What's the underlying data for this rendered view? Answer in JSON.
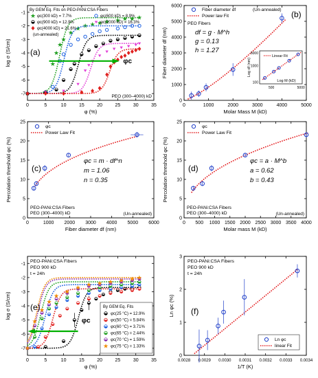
{
  "colors": {
    "axis": "#000000",
    "fit_red": "#e31a1c",
    "marker_blue": "#1f3ec9",
    "arrow_green": "#00b000",
    "green": "#1f9e1f",
    "black": "#000000",
    "red": "#e0201e",
    "blue": "#1b5fe0",
    "magenta": "#e23cd6",
    "orange": "#f08a00",
    "violet": "#8b2fb0"
  },
  "chart_data": [
    {
      "id": "a",
      "panel_label": "(a)",
      "type": "scatter",
      "xlabel": "φ (%)",
      "ylabel": "log σ (S/cm)",
      "xlim": [
        0,
        35
      ],
      "ylim": [
        -7.5,
        -0.5
      ],
      "xticks": [
        0,
        5,
        10,
        15,
        20,
        25,
        30,
        35
      ],
      "yticks": [
        -7,
        -6,
        -5,
        -4,
        -3,
        -2,
        -1
      ],
      "legend_title": "By GEM Eq. Fits on PEO-PANi:CSA Fibers",
      "legend_note": "(un-annealed)",
      "annotation": "PEO (300–4000) kD",
      "arrow_label": "φc",
      "legend": [
        {
          "label": "φc(300 kD) = 7.7%",
          "color": "#1f9e1f",
          "marker": "star"
        },
        {
          "label": "φc(600 kD) = 8.9%",
          "color": "#1b5fe0",
          "marker": "circle"
        },
        {
          "label": "φc(900 kD) = 12.9%",
          "color": "#000000",
          "marker": "half-circle"
        },
        {
          "label": "φc(2000 kD) = 16.3%",
          "color": "#e23cd6",
          "marker": "triangle-down"
        },
        {
          "label": "φc(4000 kD) = 21.6%",
          "color": "#e0201e",
          "marker": "diamond"
        }
      ],
      "series": [
        {
          "name": "φc(300 kD) = 7.7%",
          "color": "#1f9e1f",
          "marker": "star",
          "phic": 7.7,
          "low": -7.0,
          "high": -1.4,
          "x": [
            0,
            5,
            7,
            8,
            9,
            10,
            12,
            14,
            16,
            18,
            20,
            22,
            25,
            27,
            29,
            31
          ],
          "y": [
            -7.0,
            -6.9,
            -4.8,
            -4.0,
            -3.4,
            -3.0,
            -2.5,
            -2.2,
            -2.0,
            -1.9,
            -1.8,
            -1.7,
            -1.6,
            -1.5,
            -1.5,
            -1.4
          ]
        },
        {
          "name": "φc(600 kD) = 8.9%",
          "color": "#1b5fe0",
          "marker": "circle",
          "phic": 8.9,
          "low": -7.0,
          "high": -2.0,
          "x": [
            0,
            5,
            7,
            9,
            10,
            12,
            14,
            16,
            18,
            20,
            22,
            25,
            27,
            29,
            31
          ],
          "y": [
            -7.0,
            -6.9,
            -6.5,
            -4.6,
            -4.1,
            -3.4,
            -3.0,
            -2.8,
            -2.6,
            -2.4,
            -2.3,
            -2.2,
            -2.1,
            -2.0,
            -2.0
          ]
        },
        {
          "name": "φc(900 kD) = 12.9%",
          "color": "#000000",
          "marker": "half-circle",
          "phic": 12.9,
          "low": -7.0,
          "high": -2.7,
          "x": [
            0,
            5,
            8,
            10,
            12,
            13,
            15,
            17,
            19,
            21,
            23,
            25,
            27,
            29,
            31
          ],
          "y": [
            -7.0,
            -6.9,
            -6.7,
            -6.0,
            -5.2,
            -4.8,
            -4.1,
            -3.8,
            -3.5,
            -3.3,
            -3.1,
            -3.0,
            -2.9,
            -2.8,
            -2.7
          ]
        },
        {
          "name": "φc(2000 kD) = 16.3%",
          "color": "#e23cd6",
          "marker": "triangle-down",
          "phic": 16.3,
          "low": -7.0,
          "high": -3.3,
          "x": [
            0,
            5,
            10,
            14,
            16,
            17,
            18,
            20,
            22,
            24,
            26,
            28,
            30,
            31
          ],
          "y": [
            -7.0,
            -6.9,
            -6.8,
            -6.3,
            -5.3,
            -4.9,
            -4.6,
            -4.2,
            -3.9,
            -3.7,
            -3.6,
            -3.5,
            -3.4,
            -3.3
          ]
        },
        {
          "name": "φc(4000 kD) = 21.6%",
          "color": "#e0201e",
          "marker": "diamond",
          "phic": 21.6,
          "low": -7.0,
          "high": -3.7,
          "x": [
            0,
            5,
            10,
            15,
            18,
            20,
            22,
            23,
            24,
            25,
            26,
            27,
            28,
            29,
            30,
            31
          ],
          "y": [
            -7.0,
            -7.0,
            -7.0,
            -6.9,
            -6.8,
            -6.6,
            -5.6,
            -5.0,
            -4.7,
            -4.5,
            -4.3,
            -4.2,
            -4.0,
            -3.9,
            -3.8,
            -3.7
          ]
        }
      ]
    },
    {
      "id": "b",
      "panel_label": "(b)",
      "type": "scatter",
      "xlabel": "Molar Mass M (kD)",
      "ylabel": "Fiber diameter df (nm)",
      "xlim": [
        0,
        5000
      ],
      "ylim": [
        0,
        6000
      ],
      "xticks": [
        0,
        1000,
        2000,
        3000,
        4000,
        5000
      ],
      "yticks": [
        0,
        1000,
        2000,
        3000,
        4000,
        5000,
        6000
      ],
      "legend": [
        {
          "label": "Fiber diameter df",
          "color": "#1f3ec9",
          "marker": "circle"
        },
        {
          "label": "Power law Fit",
          "color": "#e31a1c",
          "marker": "dotted-line"
        }
      ],
      "note": "(Un-annealed)",
      "annotation_title": "PEO Fibers",
      "equation_lines": [
        "df = g · M^h",
        "g = 0.13",
        "h = 1.27"
      ],
      "points": [
        {
          "x": 300,
          "y": 300,
          "err": 250
        },
        {
          "x": 600,
          "y": 420,
          "err": 200
        },
        {
          "x": 900,
          "y": 820,
          "err": 250
        },
        {
          "x": 2000,
          "y": 1950,
          "err": 400
        },
        {
          "x": 4000,
          "y": 5200,
          "err": 300
        }
      ],
      "fit": {
        "a": 0.13,
        "b": 1.27
      },
      "inset": {
        "xlabel": "Log M (kD)",
        "ylabel": "Log df (nm)",
        "legend": "Linear Fit",
        "yticks": [
          100,
          1000,
          6000
        ],
        "xticks": [
          500,
          5000
        ],
        "points_m": [
          300,
          600,
          900,
          2000,
          4000
        ]
      }
    },
    {
      "id": "c",
      "panel_label": "(c)",
      "type": "scatter",
      "xlabel": "Fiber diameter df (nm)",
      "ylabel": "Percolation threshold φc (%)",
      "xlim": [
        0,
        6000
      ],
      "ylim": [
        0,
        25
      ],
      "xticks": [
        0,
        1000,
        2000,
        3000,
        4000,
        5000,
        6000
      ],
      "yticks": [
        0,
        5,
        10,
        15,
        20,
        25
      ],
      "legend": [
        {
          "label": "φc",
          "color": "#1f3ec9",
          "marker": "circle"
        },
        {
          "label": "Power Law Fit",
          "color": "#e31a1c",
          "marker": "dotted-line"
        }
      ],
      "equation_lines": [
        "φc = m · df^n",
        "m = 1.06",
        "n = 0.35"
      ],
      "caption_lines": [
        "PEO-PANi:CSA Fibers",
        "PEO (300–4000) kD"
      ],
      "note": "(Un-annealed)",
      "points": [
        {
          "x": 300,
          "y": 7.7,
          "err": 0.6
        },
        {
          "x": 420,
          "y": 8.9,
          "err": 0.6
        },
        {
          "x": 820,
          "y": 12.9,
          "err": 0.8
        },
        {
          "x": 1950,
          "y": 16.3,
          "err": 0.5
        },
        {
          "x": 5200,
          "y": 21.6,
          "err": 0.7,
          "xerr": 300
        }
      ],
      "fit": {
        "a": 1.06,
        "b": 0.35
      }
    },
    {
      "id": "d",
      "panel_label": "(d)",
      "type": "scatter",
      "xlabel": "Molar mass M (kD)",
      "ylabel": "Percolation threshold φc (%)",
      "xlim": [
        0,
        4000
      ],
      "ylim": [
        0,
        25
      ],
      "xticks": [
        0,
        500,
        1000,
        1500,
        2000,
        2500,
        3000,
        3500,
        4000
      ],
      "yticks": [
        0,
        5,
        10,
        15,
        20,
        25
      ],
      "legend": [
        {
          "label": "φc",
          "color": "#1f3ec9",
          "marker": "circle"
        },
        {
          "label": "Power Law Fit",
          "color": "#e31a1c",
          "marker": "dotted-line"
        }
      ],
      "equation_lines": [
        "φc = a · M^b",
        "a = 0.62",
        "b = 0.43"
      ],
      "caption_lines": [
        "PEO-PANi:CSA Fibers",
        "PEO (300–4000) kD"
      ],
      "note": "(Un-annealed)",
      "points": [
        {
          "x": 300,
          "y": 7.7,
          "err": 0.6
        },
        {
          "x": 600,
          "y": 8.9,
          "err": 0.6
        },
        {
          "x": 900,
          "y": 12.9,
          "err": 0.8
        },
        {
          "x": 2000,
          "y": 16.3,
          "err": 0.5
        },
        {
          "x": 4000,
          "y": 21.6,
          "err": 0.7
        }
      ],
      "fit": {
        "a": 0.62,
        "b": 0.43
      }
    },
    {
      "id": "e",
      "panel_label": "(e)",
      "type": "scatter",
      "xlabel": "φ (%)",
      "ylabel": "log σ (S/cm)",
      "xlim": [
        0,
        35
      ],
      "ylim": [
        -7.5,
        -0.5
      ],
      "xticks": [
        0,
        5,
        10,
        15,
        20,
        25,
        30,
        35
      ],
      "yticks": [
        -7,
        -6,
        -5,
        -4,
        -3,
        -2,
        -1
      ],
      "caption_lines": [
        "PEO-PANi:CSA Fibers",
        "PEO 900 kD",
        "t = 24h"
      ],
      "legend_title": "By GEM Eq. Fits",
      "arrow_label": "φc",
      "legend": [
        {
          "label": "φc(25 °C) = 12.9%",
          "color": "#000000",
          "marker": "half-circle"
        },
        {
          "label": "φc(50 °C) = 5.84%",
          "color": "#e0201e",
          "marker": "half-circle"
        },
        {
          "label": "φc(60 °C) = 3.71%",
          "color": "#1b5fe0",
          "marker": "half-circle"
        },
        {
          "label": "φc(65 °C) = 2.44%",
          "color": "#1f9e1f",
          "marker": "half-circle"
        },
        {
          "label": "φc(70 °C) = 1.59%",
          "color": "#8b2fb0",
          "marker": "half-circle"
        },
        {
          "label": "φc(75 °C) = 1.33%",
          "color": "#f08a00",
          "marker": "star"
        }
      ],
      "series": [
        {
          "name": "φc(25 °C) = 12.9%",
          "color": "#000000",
          "phic": 12.9,
          "low": -7.0,
          "high": -2.7,
          "x": [
            0,
            5,
            10,
            13,
            15,
            17,
            19,
            21,
            23,
            25,
            27,
            29,
            31
          ],
          "y": [
            -7.0,
            -6.9,
            -6.5,
            -5.0,
            -4.3,
            -3.8,
            -3.5,
            -3.2,
            -3.0,
            -2.9,
            -2.8,
            -2.8,
            -2.7
          ]
        },
        {
          "name": "φc(50 °C) = 5.84%",
          "color": "#e0201e",
          "phic": 5.84,
          "low": -7.0,
          "high": -2.8,
          "x": [
            0,
            3,
            5,
            7,
            9,
            11,
            14,
            17,
            20,
            23,
            26,
            29,
            31
          ],
          "y": [
            -7.0,
            -6.9,
            -6.2,
            -5.3,
            -4.7,
            -4.2,
            -3.8,
            -3.5,
            -3.3,
            -3.1,
            -3.0,
            -2.9,
            -2.8
          ]
        },
        {
          "name": "φc(60 °C) = 3.71%",
          "color": "#1b5fe0",
          "phic": 3.71,
          "low": -7.0,
          "high": -2.5,
          "x": [
            0,
            2,
            4,
            6,
            8,
            11,
            14,
            17,
            20,
            23,
            26,
            29,
            31
          ],
          "y": [
            -7.0,
            -6.9,
            -5.6,
            -4.6,
            -4.1,
            -3.6,
            -3.3,
            -3.1,
            -2.9,
            -2.8,
            -2.7,
            -2.6,
            -2.5
          ]
        },
        {
          "name": "φc(65 °C) = 2.44%",
          "color": "#1f9e1f",
          "phic": 2.44,
          "low": -7.0,
          "high": -2.3,
          "x": [
            0,
            2,
            4,
            6,
            8,
            11,
            14,
            17,
            20,
            23,
            26,
            29,
            31
          ],
          "y": [
            -7.0,
            -6.2,
            -4.9,
            -4.2,
            -3.8,
            -3.4,
            -3.1,
            -2.9,
            -2.7,
            -2.6,
            -2.5,
            -2.4,
            -2.3
          ]
        },
        {
          "name": "φc(70 °C) = 1.59%",
          "color": "#8b2fb0",
          "phic": 1.59,
          "low": -7.0,
          "high": -2.1,
          "x": [
            0,
            2,
            4,
            6,
            8,
            11,
            14,
            17,
            20,
            23,
            26,
            29,
            31
          ],
          "y": [
            -7.0,
            -5.4,
            -4.5,
            -3.9,
            -3.5,
            -3.1,
            -2.8,
            -2.6,
            -2.5,
            -2.4,
            -2.3,
            -2.2,
            -2.1
          ]
        },
        {
          "name": "φc(75 °C) = 1.33%",
          "color": "#f08a00",
          "phic": 1.33,
          "low": -7.0,
          "high": -2.0,
          "x": [
            0,
            2,
            4,
            6,
            8,
            11,
            14,
            17,
            20,
            23,
            26,
            29,
            31
          ],
          "y": [
            -7.0,
            -5.1,
            -4.3,
            -3.7,
            -3.3,
            -3.0,
            -2.7,
            -2.5,
            -2.4,
            -2.3,
            -2.2,
            -2.1,
            -2.0
          ]
        }
      ]
    },
    {
      "id": "f",
      "panel_label": "(f)",
      "type": "scatter",
      "xlabel": "1/T (K)",
      "ylabel": "Ln φc (%)",
      "xlim": [
        0.0028,
        0.0034
      ],
      "ylim": [
        0,
        3
      ],
      "xticks": [
        "0.0028",
        "0.0029",
        "0.0030",
        "0.0031",
        "0.0032",
        "0.0033",
        "0.0034"
      ],
      "yticks": [
        0,
        1,
        2,
        3
      ],
      "caption_lines": [
        "PEO-PANi:CSA Fibers",
        "PEO 900 kD",
        "t = 24h"
      ],
      "legend": [
        {
          "label": "Ln φc",
          "color": "#1f3ec9",
          "marker": "circle"
        },
        {
          "label": "linear Fit",
          "color": "#e31a1c",
          "marker": "dotted-line"
        }
      ],
      "points": [
        {
          "x": 0.002874,
          "y": 0.28,
          "err": 0.5
        },
        {
          "x": 0.002915,
          "y": 0.46,
          "err": 0.3
        },
        {
          "x": 0.002967,
          "y": 0.89,
          "err": 0.25
        },
        {
          "x": 0.002994,
          "y": 1.31,
          "err": 0.35
        },
        {
          "x": 0.003096,
          "y": 1.76,
          "err": 0.55
        },
        {
          "x": 0.003356,
          "y": 2.56,
          "err": 0.2
        }
      ],
      "fit": {
        "x0": 0.00285,
        "y0": 0.05,
        "x1": 0.00336,
        "y1": 2.62
      }
    }
  ]
}
